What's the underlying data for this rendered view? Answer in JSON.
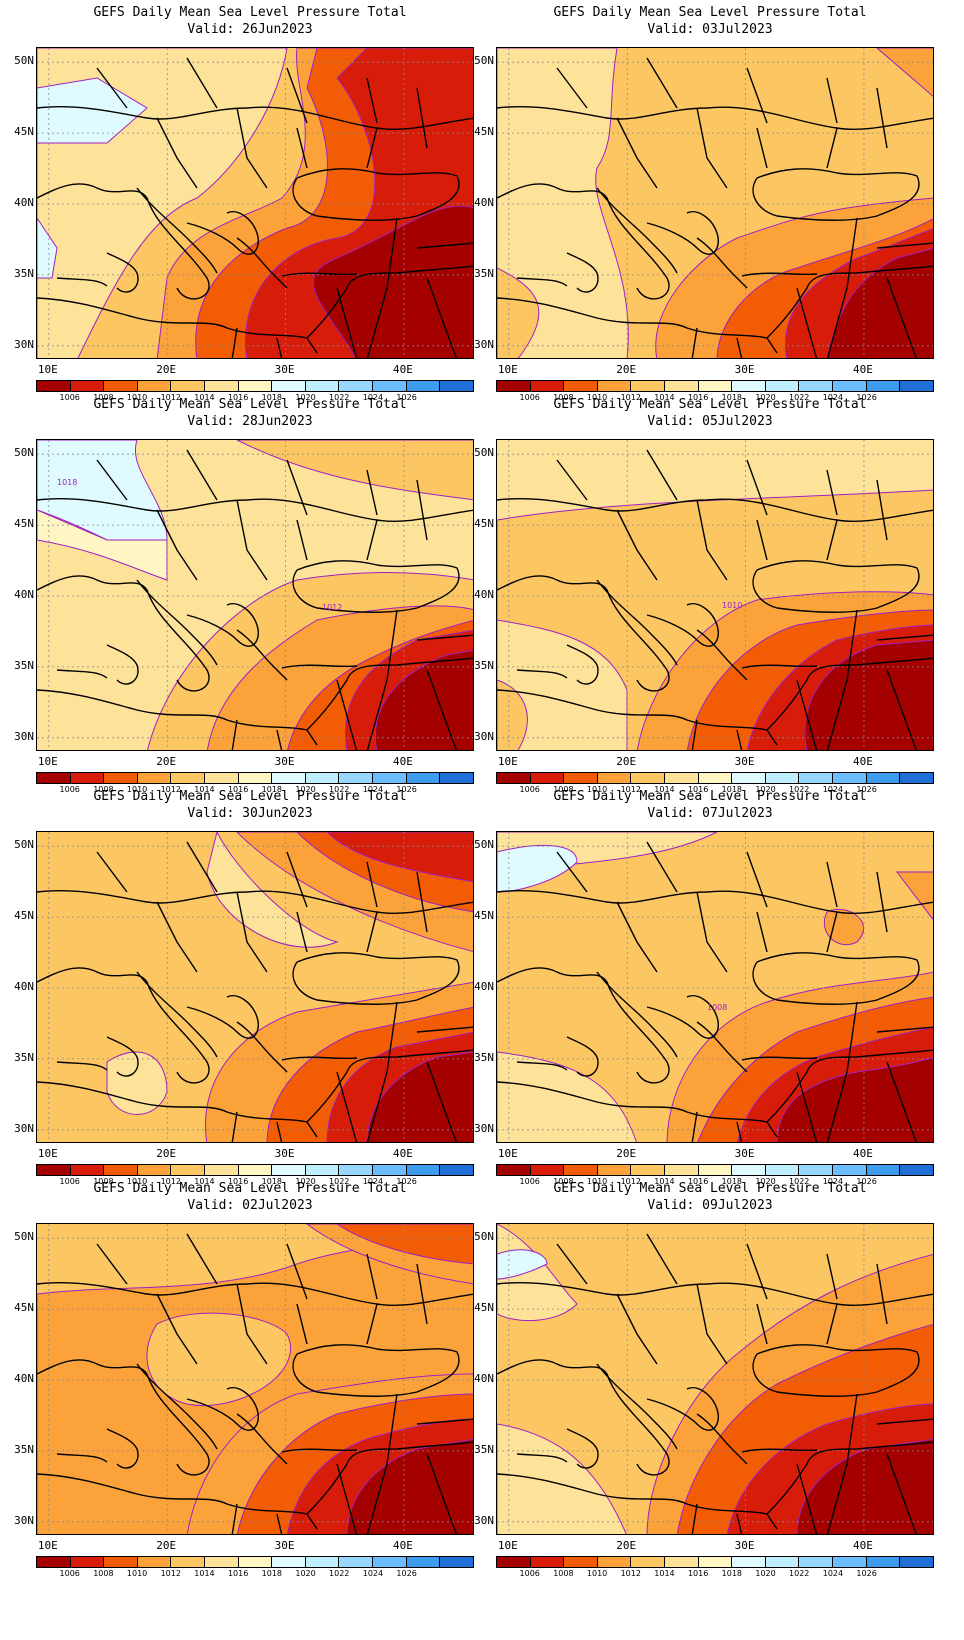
{
  "panels": [
    {
      "title": "GEFS Daily Mean Sea Level Pressure Total",
      "valid": "Valid:  26Jun2023",
      "variant": 0,
      "labels": []
    },
    {
      "title": "GEFS Daily Mean Sea Level Pressure Total",
      "valid": "Valid:  03Jul2023",
      "variant": 1,
      "labels": []
    },
    {
      "title": "GEFS Daily Mean Sea Level Pressure Total",
      "valid": "Valid:  28Jun2023",
      "variant": 2,
      "labels": [
        "1018",
        "1012"
      ]
    },
    {
      "title": "GEFS Daily Mean Sea Level Pressure Total",
      "valid": "Valid:  05Jul2023",
      "variant": 3,
      "labels": [
        "1010"
      ]
    },
    {
      "title": "GEFS Daily Mean Sea Level Pressure Total",
      "valid": "Valid:  30Jun2023",
      "variant": 4,
      "labels": []
    },
    {
      "title": "GEFS Daily Mean Sea Level Pressure Total",
      "valid": "Valid:  07Jul2023",
      "variant": 5,
      "labels": [
        "1008"
      ]
    },
    {
      "title": "GEFS Daily Mean Sea Level Pressure Total",
      "valid": "Valid:  02Jul2023",
      "variant": 6,
      "labels": []
    },
    {
      "title": "GEFS Daily Mean Sea Level Pressure Total",
      "valid": "Valid:  09Jul2023",
      "variant": 7,
      "labels": []
    }
  ],
  "axes": {
    "lat_labels": [
      "50N",
      "45N",
      "40N",
      "35N",
      "30N"
    ],
    "lon_labels": [
      "10E",
      "20E",
      "30E",
      "40E"
    ]
  },
  "colorbar": {
    "labels": [
      "1006",
      "1008",
      "1010",
      "1012",
      "1014",
      "1016",
      "1018",
      "1020",
      "1022",
      "1024",
      "1026"
    ],
    "colors": [
      "#a50000",
      "#d81c0a",
      "#f25c05",
      "#fba33a",
      "#fcc663",
      "#fde399",
      "#fff6c4",
      "#e0fbff",
      "#bfeeff",
      "#98d7ff",
      "#6cbdff",
      "#3d9cf0",
      "#1f6fd6"
    ]
  },
  "map_colors": {
    "contour_line": "#a020c0",
    "coast": "#000000",
    "grid": "#8a8a8a"
  }
}
